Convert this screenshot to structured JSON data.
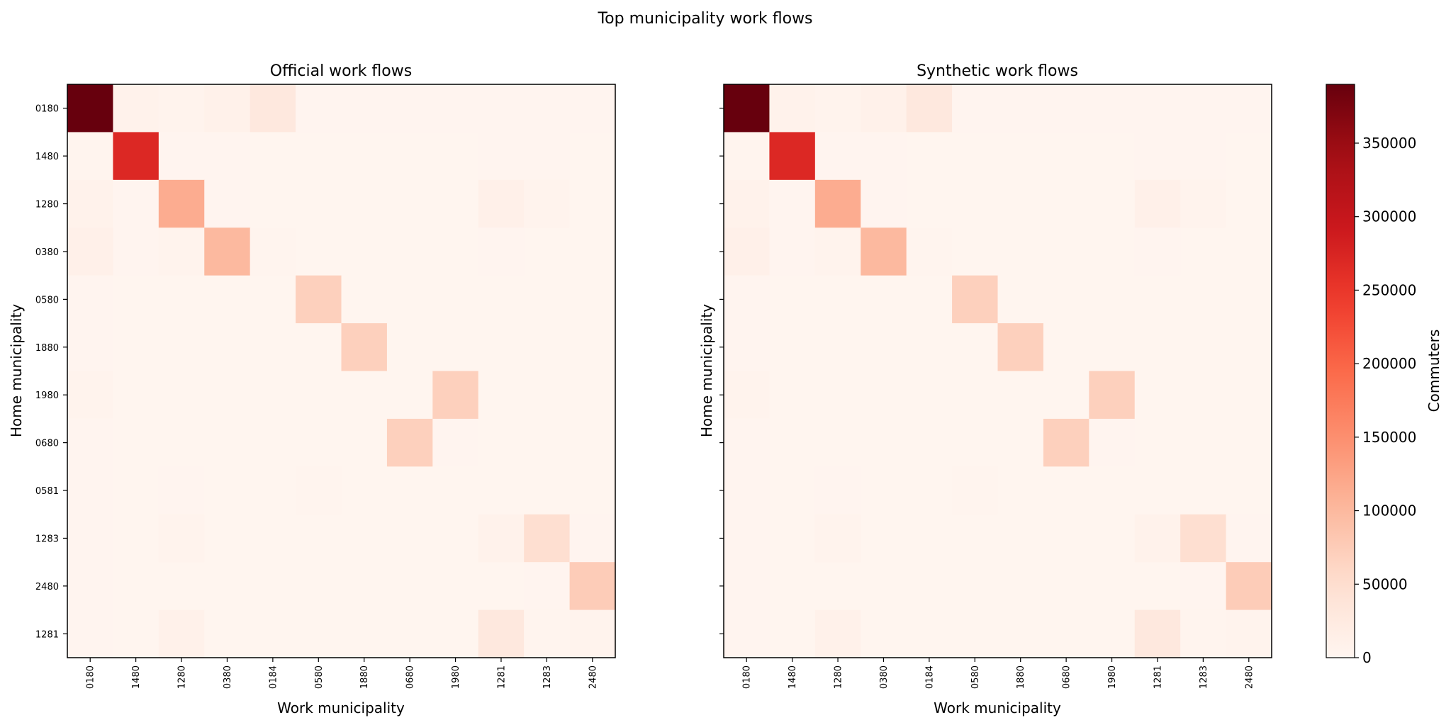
{
  "figure": {
    "suptitle": "Top municipality work flows"
  },
  "colors": {
    "low": "#fff5f0",
    "mid": "#fb6a4a",
    "high": "#67000d"
  },
  "chart_data": [
    {
      "type": "heatmap",
      "title": "Official work flows",
      "xlabel": "Work municipality",
      "ylabel": "Home municipality",
      "x_categories": [
        "0180",
        "1480",
        "1280",
        "0380",
        "0184",
        "0580",
        "1880",
        "0680",
        "1980",
        "1281",
        "1283",
        "2480"
      ],
      "y_categories": [
        "0180",
        "1480",
        "1280",
        "0380",
        "0580",
        "1880",
        "1980",
        "0680",
        "0581",
        "1283",
        "2480",
        "1281"
      ],
      "values": [
        [
          390000,
          8000,
          5000,
          9000,
          30000,
          2000,
          1500,
          1500,
          1500,
          2000,
          2000,
          1500
        ],
        [
          3000,
          270000,
          1500,
          1500,
          1000,
          1000,
          1000,
          1000,
          1000,
          1500,
          1500,
          1000
        ],
        [
          8000,
          2000,
          115000,
          2000,
          1000,
          1000,
          1000,
          1000,
          1000,
          12000,
          5000,
          1000
        ],
        [
          12000,
          1500,
          5000,
          100000,
          3000,
          1000,
          1000,
          1000,
          1000,
          1500,
          1000,
          1000
        ],
        [
          2000,
          1000,
          1000,
          1000,
          1000,
          70000,
          1000,
          1000,
          1000,
          1000,
          1000,
          1000
        ],
        [
          2000,
          1000,
          1000,
          1000,
          1000,
          1000,
          70000,
          1000,
          1000,
          1000,
          1000,
          1000
        ],
        [
          5000,
          1000,
          1000,
          1000,
          1000,
          1000,
          1000,
          1000,
          70000,
          1000,
          1000,
          1000
        ],
        [
          2000,
          1000,
          1000,
          1000,
          1000,
          1000,
          1000,
          70000,
          2000,
          1000,
          1000,
          1000
        ],
        [
          2000,
          1000,
          1500,
          1000,
          1000,
          3000,
          1000,
          1000,
          1000,
          1000,
          1000,
          1000
        ],
        [
          2000,
          1000,
          5000,
          1000,
          1000,
          1000,
          1000,
          1000,
          1000,
          8000,
          50000,
          2000
        ],
        [
          2000,
          1000,
          1000,
          1000,
          1000,
          1000,
          1000,
          1000,
          1000,
          1000,
          2000,
          75000
        ],
        [
          2000,
          1000,
          10000,
          1000,
          1000,
          1000,
          1000,
          1000,
          1000,
          30000,
          3000,
          5000
        ]
      ],
      "vmin": 0,
      "vmax": 390000
    },
    {
      "type": "heatmap",
      "title": "Synthetic work flows",
      "xlabel": "Work municipality",
      "ylabel": "Home municipality",
      "x_categories": [
        "0180",
        "1480",
        "1280",
        "0380",
        "0184",
        "0580",
        "1880",
        "0680",
        "1980",
        "1281",
        "1283",
        "2480"
      ],
      "y_categories": [
        "0180",
        "1480",
        "1280",
        "0380",
        "0580",
        "1880",
        "1980",
        "0680",
        "0581",
        "1283",
        "2480",
        "1281"
      ],
      "values": [
        [
          390000,
          8000,
          5000,
          9000,
          30000,
          2000,
          1500,
          1500,
          1500,
          2000,
          2000,
          1500
        ],
        [
          3000,
          270000,
          1500,
          1500,
          1000,
          1000,
          1000,
          1000,
          1000,
          1500,
          1500,
          1000
        ],
        [
          8000,
          2000,
          115000,
          2000,
          1000,
          1000,
          1000,
          1000,
          1000,
          12000,
          5000,
          1000
        ],
        [
          12000,
          1500,
          5000,
          100000,
          3000,
          1000,
          1000,
          1000,
          1000,
          1500,
          1000,
          1000
        ],
        [
          2000,
          1000,
          1000,
          1000,
          1000,
          70000,
          1000,
          1000,
          1000,
          1000,
          1000,
          1000
        ],
        [
          2000,
          1000,
          1000,
          1000,
          1000,
          1000,
          70000,
          1000,
          1000,
          1000,
          1000,
          1000
        ],
        [
          5000,
          1000,
          1000,
          1000,
          1000,
          1000,
          1000,
          1000,
          70000,
          1000,
          1000,
          1000
        ],
        [
          2000,
          1000,
          1000,
          1000,
          1000,
          1000,
          1000,
          70000,
          2000,
          1000,
          1000,
          1000
        ],
        [
          2000,
          1000,
          1500,
          1000,
          1000,
          3000,
          1000,
          1000,
          1000,
          1000,
          1000,
          1000
        ],
        [
          2000,
          1000,
          5000,
          1000,
          1000,
          1000,
          1000,
          1000,
          1000,
          8000,
          50000,
          2000
        ],
        [
          2000,
          1000,
          1000,
          1000,
          1000,
          1000,
          1000,
          1000,
          1000,
          1000,
          2000,
          75000
        ],
        [
          2000,
          1000,
          10000,
          1000,
          1000,
          1000,
          1000,
          1000,
          1000,
          30000,
          3000,
          5000
        ]
      ],
      "vmin": 0,
      "vmax": 390000
    }
  ],
  "colorbar": {
    "label": "Commuters",
    "ticks": [
      0,
      50000,
      100000,
      150000,
      200000,
      250000,
      300000,
      350000
    ],
    "tick_labels": [
      "0",
      "50000",
      "100000",
      "150000",
      "200000",
      "250000",
      "300000",
      "350000"
    ],
    "vmin": 0,
    "vmax": 390000
  }
}
